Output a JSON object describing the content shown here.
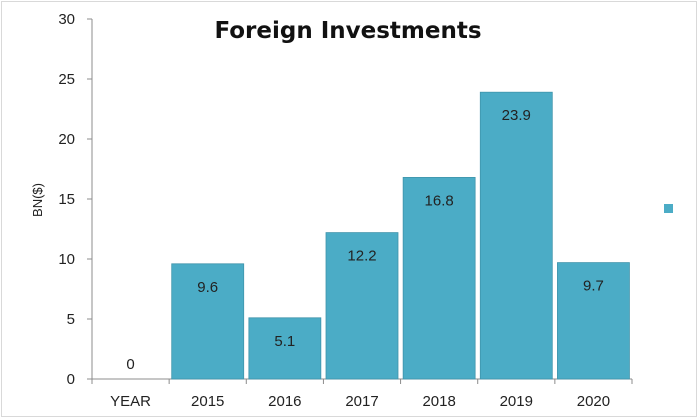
{
  "chart_data": {
    "type": "bar",
    "title": "Foreign Investments",
    "xlabel": "",
    "ylabel": "BN($)",
    "categories": [
      "YEAR",
      "2015",
      "2016",
      "2017",
      "2018",
      "2019",
      "2020"
    ],
    "values": [
      0,
      9.6,
      5.1,
      12.2,
      16.8,
      23.9,
      9.7
    ],
    "data_labels": [
      "0",
      "9.6",
      "5.1",
      "12.2",
      "16.8",
      "23.9",
      "9.7"
    ],
    "ylim": [
      0,
      30
    ],
    "yticks": [
      "0",
      "5",
      "10",
      "15",
      "20",
      "25",
      "30"
    ],
    "grid": false,
    "legend": "right",
    "bar_color": "#4bacc6"
  }
}
